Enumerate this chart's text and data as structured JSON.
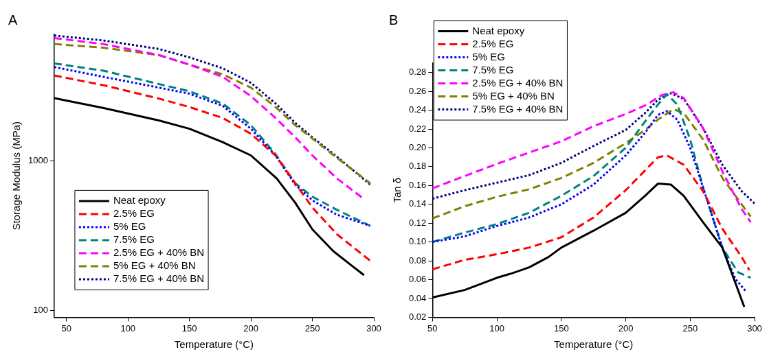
{
  "chart_data": [
    {
      "type": "line",
      "title": "A",
      "xlabel": "Temperature (°C)",
      "ylabel": "Storage Modulus (MPa)",
      "log": "y",
      "xlim": [
        40,
        300
      ],
      "ylim": [
        90,
        7000
      ],
      "xticks": [
        50,
        100,
        150,
        200,
        250,
        300
      ],
      "yticks": [
        100,
        1000
      ],
      "legend": "bottom left",
      "grid": false,
      "marker": "none",
      "series": [
        {
          "name": "Neat epoxy",
          "color": "#000000",
          "line_style": "solid",
          "x": [
            40,
            81,
            125,
            150,
            177,
            200,
            221,
            236,
            250,
            267,
            292
          ],
          "values": [
            2625,
            2245,
            1862,
            1637,
            1334,
            1086,
            762,
            525,
            348,
            249,
            172
          ]
        },
        {
          "name": "2.5% EG",
          "color": "#ff0000",
          "line_style": "dashed",
          "x": [
            40,
            80,
            125,
            150,
            177,
            200,
            220,
            236,
            250,
            270,
            297
          ],
          "values": [
            3715,
            3200,
            2606,
            2287,
            1933,
            1516,
            1086,
            708,
            487,
            323,
            215
          ]
        },
        {
          "name": "5% EG",
          "color": "#0000ff",
          "line_style": "dotted",
          "x": [
            40,
            80,
            125,
            150,
            177,
            200,
            220,
            236,
            250,
            270,
            297
          ],
          "values": [
            4230,
            3640,
            3084,
            2807,
            2330,
            1637,
            1086,
            694,
            544,
            436,
            368
          ]
        },
        {
          "name": "7.5% EG",
          "color": "#008080",
          "line_style": "dashed",
          "x": [
            40,
            80,
            125,
            150,
            177,
            200,
            220,
            236,
            250,
            270,
            297
          ],
          "values": [
            4470,
            4000,
            3260,
            2913,
            2416,
            1730,
            1107,
            708,
            576,
            470,
            368
          ]
        },
        {
          "name": "2.5% EG + 40% BN",
          "color": "#ff00ff",
          "line_style": "dashed",
          "x": [
            40,
            80,
            125,
            150,
            177,
            200,
            220,
            236,
            250,
            270,
            292
          ],
          "values": [
            6610,
            6020,
            5090,
            4390,
            3640,
            2704,
            1933,
            1435,
            1086,
            762,
            555
          ]
        },
        {
          "name": "5% EG + 40% BN",
          "color": "#808000",
          "line_style": "dashed",
          "x": [
            40,
            80,
            125,
            150,
            177,
            200,
            220,
            236,
            250,
            270,
            297
          ],
          "values": [
            6030,
            5700,
            5090,
            4390,
            3780,
            3084,
            2287,
            1730,
            1409,
            1045,
            708
          ]
        },
        {
          "name": "7.5% EG + 40% BN",
          "color": "#000080",
          "line_style": "dotted",
          "x": [
            40,
            80,
            125,
            150,
            177,
            200,
            220,
            236,
            250,
            270,
            297
          ],
          "values": [
            6870,
            6370,
            5590,
            4910,
            4150,
            3320,
            2416,
            1795,
            1435,
            1064,
            694
          ]
        }
      ]
    },
    {
      "type": "line",
      "title": "B",
      "xlabel": "Temperature (°C)",
      "ylabel": "Tan δ",
      "xlim": [
        50,
        300
      ],
      "ylim": [
        0.02,
        0.29
      ],
      "xticks": [
        50,
        100,
        150,
        200,
        250,
        300
      ],
      "yticks": [
        {
          "value": 0.02,
          "label": "0.02"
        },
        {
          "value": 0.04,
          "label": "0.04"
        },
        {
          "value": 0.06,
          "label": "0.06"
        },
        {
          "value": 0.08,
          "label": "0.08"
        },
        {
          "value": 0.1,
          "label": "0.10"
        },
        {
          "value": 0.12,
          "label": "0.12"
        },
        {
          "value": 0.14,
          "label": "0.14"
        },
        {
          "value": 0.16,
          "label": "0.16"
        },
        {
          "value": 0.18,
          "label": "0.18"
        },
        {
          "value": 0.2,
          "label": "0.20"
        },
        {
          "value": 0.22,
          "label": "0.22"
        },
        {
          "value": 0.24,
          "label": "0.24"
        },
        {
          "value": 0.26,
          "label": "0.26"
        },
        {
          "value": 0.28,
          "label": "0.28"
        }
      ],
      "legend": "top left",
      "grid": false,
      "marker": "none",
      "series": [
        {
          "name": "Neat epoxy",
          "color": "#000000",
          "line_style": "solid",
          "x": [
            50,
            75,
            100,
            110,
            125,
            140,
            150,
            175,
            200,
            215,
            225,
            235,
            245,
            260,
            275,
            292
          ],
          "values": [
            0.041,
            0.049,
            0.062,
            0.066,
            0.073,
            0.084,
            0.094,
            0.112,
            0.131,
            0.149,
            0.162,
            0.161,
            0.149,
            0.121,
            0.094,
            0.031
          ]
        },
        {
          "name": "2.5% EG",
          "color": "#ff0000",
          "line_style": "dashed",
          "x": [
            50,
            75,
            100,
            125,
            150,
            175,
            200,
            215,
            225,
            232,
            245,
            260,
            275,
            290,
            296
          ],
          "values": [
            0.071,
            0.081,
            0.087,
            0.094,
            0.105,
            0.126,
            0.155,
            0.176,
            0.19,
            0.192,
            0.182,
            0.154,
            0.114,
            0.084,
            0.07
          ]
        },
        {
          "name": "5% EG",
          "color": "#0000ff",
          "line_style": "dotted",
          "x": [
            50,
            75,
            100,
            125,
            150,
            175,
            200,
            215,
            225,
            232,
            240,
            250,
            260,
            275,
            285,
            293
          ],
          "values": [
            0.1,
            0.106,
            0.117,
            0.126,
            0.14,
            0.161,
            0.192,
            0.216,
            0.235,
            0.239,
            0.23,
            0.2,
            0.158,
            0.094,
            0.061,
            0.048
          ]
        },
        {
          "name": "7.5% EG",
          "color": "#008080",
          "line_style": "dashed",
          "x": [
            50,
            75,
            100,
            125,
            150,
            175,
            200,
            215,
            225,
            232,
            240,
            250,
            260,
            275,
            287,
            297
          ],
          "values": [
            0.1,
            0.11,
            0.119,
            0.131,
            0.149,
            0.17,
            0.2,
            0.228,
            0.246,
            0.257,
            0.246,
            0.209,
            0.158,
            0.094,
            0.068,
            0.062
          ]
        },
        {
          "name": "2.5% EG + 40% BN",
          "color": "#ff00ff",
          "line_style": "dashed",
          "x": [
            50,
            75,
            100,
            125,
            150,
            175,
            200,
            215,
            228,
            237,
            245,
            260,
            275,
            290,
            297
          ],
          "values": [
            0.157,
            0.17,
            0.183,
            0.195,
            0.207,
            0.223,
            0.236,
            0.245,
            0.256,
            0.259,
            0.253,
            0.221,
            0.175,
            0.135,
            0.121
          ]
        },
        {
          "name": "5% EG + 40% BN",
          "color": "#808000",
          "line_style": "dashed",
          "x": [
            50,
            75,
            100,
            125,
            150,
            175,
            200,
            215,
            225,
            237,
            245,
            260,
            275,
            290,
            297
          ],
          "values": [
            0.125,
            0.138,
            0.148,
            0.156,
            0.168,
            0.184,
            0.205,
            0.219,
            0.23,
            0.241,
            0.237,
            0.209,
            0.168,
            0.14,
            0.127
          ]
        },
        {
          "name": "7.5% EG + 40% BN",
          "color": "#000080",
          "line_style": "dotted",
          "x": [
            50,
            75,
            100,
            125,
            150,
            175,
            200,
            215,
            225,
            235,
            245,
            260,
            275,
            290,
            300
          ],
          "values": [
            0.146,
            0.155,
            0.163,
            0.171,
            0.184,
            0.202,
            0.219,
            0.237,
            0.251,
            0.258,
            0.252,
            0.221,
            0.182,
            0.154,
            0.141
          ]
        }
      ]
    }
  ]
}
